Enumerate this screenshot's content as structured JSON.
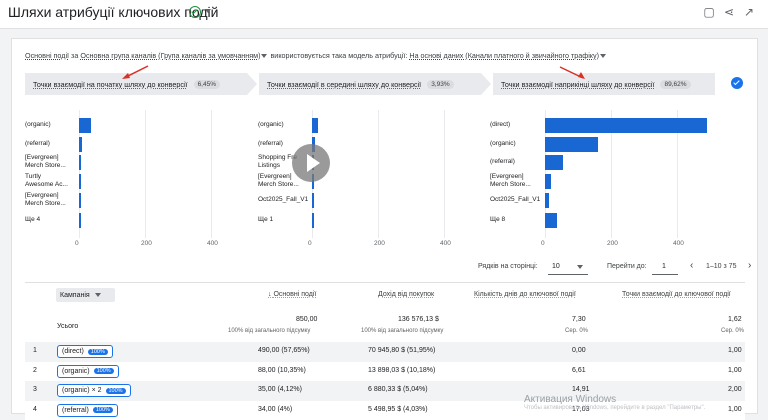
{
  "header": {
    "title": "Шляхи атрибуції ключових подій"
  },
  "filter": {
    "part1": "Основні події",
    "part2": " за ",
    "part3": "Основна група каналів (Група каналів за умовчанням)",
    "part4": " використовується така модель атрибуції: ",
    "part5": "На основі даних (Канали платного й звичайного трафіку)"
  },
  "stages": [
    {
      "label": "Точки взаємодії на початку шляху до конверсії",
      "pct": "6,45%"
    },
    {
      "label": "Точки взаємодії в середині шляху до конверсії",
      "pct": "3,93%"
    },
    {
      "label": "Точки взаємодії наприкінці шляху до конверсії",
      "pct": "89,62%"
    }
  ],
  "panels": [
    {
      "rows": [
        "(organic)",
        "(referral)",
        "[Evergreen]\nMerch Store...",
        "Turtly\nAwesome Ac...",
        "[Evergreen]\nMerch Store...",
        "Ще 4"
      ],
      "values": [
        35,
        8,
        3,
        2,
        2,
        0
      ]
    },
    {
      "rows": [
        "(organic)",
        "(referral)",
        "Shopping Fre\nListings",
        "[Evergreen]\nMerch Store...",
        "Oct2025_Fall_V1",
        "Ще 1"
      ],
      "values": [
        17,
        10,
        4,
        3,
        2,
        0
      ]
    },
    {
      "rows": [
        "(direct)",
        "(organic)",
        "(referral)",
        "[Evergreen]\nMerch Store...",
        "Oct2025_Fall_V1",
        "Ще 8"
      ],
      "values": [
        490,
        160,
        55,
        18,
        12,
        35
      ]
    }
  ],
  "axis_ticks": [
    "0",
    "200",
    "400"
  ],
  "chart_data": {
    "type": "bar",
    "charts": [
      {
        "title": "Точки взаємодії на початку шляху до конверсії",
        "categories": [
          "(organic)",
          "(referral)",
          "[Evergreen] Merch Store...",
          "Turtly Awesome Ac...",
          "[Evergreen] Merch Store...",
          "Ще 4"
        ],
        "values": [
          35,
          8,
          3,
          2,
          2,
          0
        ]
      },
      {
        "title": "Точки взаємодії в середині шляху до конверсії",
        "categories": [
          "(organic)",
          "(referral)",
          "Shopping Free Listings",
          "[Evergreen] Merch Store...",
          "Oct2025_Fall_V1",
          "Ще 1"
        ],
        "values": [
          17,
          10,
          4,
          3,
          2,
          0
        ]
      },
      {
        "title": "Точки взаємодії наприкінці шляху до конверсії",
        "categories": [
          "(direct)",
          "(organic)",
          "(referral)",
          "[Evergreen] Merch Store...",
          "Oct2025_Fall_V1",
          "Ще 8"
        ],
        "values": [
          490,
          160,
          55,
          18,
          12,
          35
        ]
      }
    ],
    "xlim": [
      0,
      500
    ],
    "ticks": [
      0,
      200,
      400
    ]
  },
  "pager": {
    "rows_label": "Рядків на сторінці:",
    "rows_value": "10",
    "goto_label": "Перейти до:",
    "goto_value": "1",
    "range": "1–10 з 75"
  },
  "table": {
    "col_campaign": "Кампанія",
    "col_events": "Основні події",
    "col_revenue": "Дохід від покупок",
    "col_days": "Кількість днів до ключової події",
    "col_touch": "Точки взаємодії до ключової події",
    "total_label": "Усього",
    "total": {
      "events": "850,00",
      "events_sub": "100% від загального підсумку",
      "revenue": "136 576,13 $",
      "revenue_sub": "100% від загального підсумку",
      "days": "7,30",
      "days_sub": "Сер. 0%",
      "touch": "1,62",
      "touch_sub": "Сер. 0%"
    },
    "rows": [
      {
        "n": "1",
        "name": "(direct)",
        "badge": "100%",
        "events": "490,00 (57,65%)",
        "revenue": "70 945,80 $ (51,95%)",
        "days": "0,00",
        "touch": "1,00"
      },
      {
        "n": "2",
        "name": "(organic)",
        "badge": "100%",
        "events": "88,00 (10,35%)",
        "revenue": "13 898,03 $ (10,18%)",
        "days": "6,61",
        "touch": "1,00"
      },
      {
        "n": "3",
        "name": "(organic) × 2",
        "badge": "100%",
        "events": "35,00 (4,12%)",
        "revenue": "6 880,33 $ (5,04%)",
        "days": "14,91",
        "touch": "2,00"
      },
      {
        "n": "4",
        "name": "(referral)",
        "badge": "100%",
        "events": "34,00 (4%)",
        "revenue": "5 498,95 $ (4,03%)",
        "days": "17,03",
        "touch": "1,00"
      }
    ]
  },
  "watermark": {
    "line1": "Активация Windows",
    "line2": "Чтобы активировать Windows, перейдите в раздел \"Параметры\"."
  }
}
